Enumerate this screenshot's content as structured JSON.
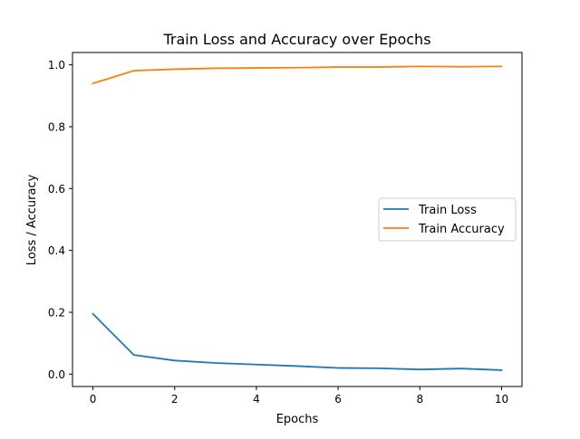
{
  "chart_data": {
    "type": "line",
    "title": "Train Loss and Accuracy over Epochs",
    "xlabel": "Epochs",
    "ylabel": "Loss / Accuracy",
    "xlim": [
      -0.5,
      10.5
    ],
    "ylim": [
      -0.04,
      1.04
    ],
    "xticks": [
      0,
      2,
      4,
      6,
      8,
      10
    ],
    "xtick_labels": [
      "0",
      "2",
      "4",
      "6",
      "8",
      "10"
    ],
    "yticks": [
      0.0,
      0.2,
      0.4,
      0.6,
      0.8,
      1.0
    ],
    "ytick_labels": [
      "0.0",
      "0.2",
      "0.4",
      "0.6",
      "0.8",
      "1.0"
    ],
    "grid": false,
    "legend_position": "center-right",
    "x": [
      0,
      1,
      2,
      3,
      4,
      5,
      6,
      7,
      8,
      9,
      10
    ],
    "series": [
      {
        "name": "Train Loss",
        "color": "#1f77b4",
        "values": [
          0.195,
          0.062,
          0.044,
          0.036,
          0.031,
          0.026,
          0.02,
          0.019,
          0.015,
          0.018,
          0.013
        ]
      },
      {
        "name": "Train Accuracy",
        "color": "#ff7f0e",
        "values": [
          0.94,
          0.981,
          0.986,
          0.989,
          0.99,
          0.991,
          0.993,
          0.993,
          0.995,
          0.994,
          0.995
        ]
      }
    ]
  }
}
